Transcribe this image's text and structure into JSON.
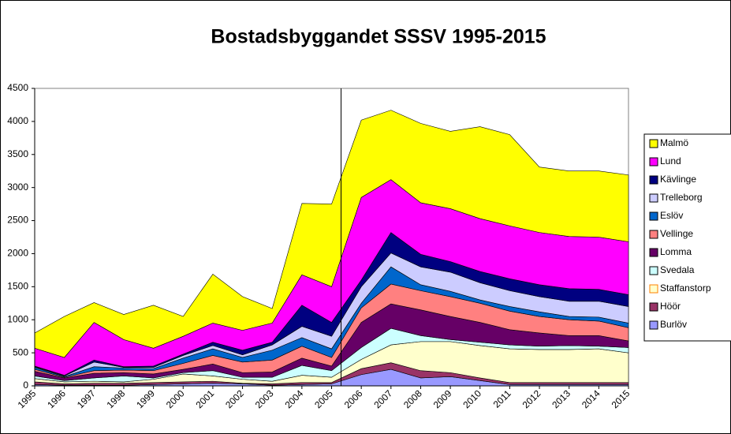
{
  "chart_data": {
    "type": "stacked_area",
    "title": "Bostadsbyggandet SSSV 1995-2015",
    "categories": [
      "1995",
      "1996",
      "1997",
      "1998",
      "1999",
      "2000",
      "2001",
      "2002",
      "2003",
      "2004",
      "2005",
      "2006",
      "2007",
      "2008",
      "2009",
      "2010",
      "2011",
      "2012",
      "2013",
      "2014",
      "2015"
    ],
    "ylim": [
      0,
      4500
    ],
    "yticks": [
      0,
      500,
      1000,
      1500,
      2000,
      2500,
      3000,
      3500,
      4000,
      4500
    ],
    "legend": "right",
    "series": [
      {
        "name": "Burlöv",
        "color": "#9999ff",
        "values": [
          20,
          10,
          10,
          10,
          20,
          30,
          40,
          30,
          10,
          20,
          30,
          170,
          250,
          120,
          140,
          80,
          20,
          20,
          20,
          20,
          20
        ]
      },
      {
        "name": "Höör",
        "color": "#993366",
        "values": [
          40,
          20,
          30,
          30,
          30,
          30,
          30,
          10,
          20,
          30,
          20,
          90,
          100,
          110,
          60,
          40,
          30,
          30,
          30,
          30,
          30
        ]
      },
      {
        "name": "Staffanstorp",
        "color": "#ffffcc",
        "values": [
          50,
          30,
          30,
          20,
          50,
          120,
          80,
          60,
          40,
          110,
          80,
          140,
          270,
          440,
          470,
          490,
          510,
          500,
          500,
          510,
          450
        ]
      },
      {
        "name": "Svedala",
        "color": "#ccffff",
        "values": [
          40,
          20,
          50,
          90,
          20,
          20,
          80,
          30,
          60,
          150,
          100,
          180,
          250,
          90,
          30,
          50,
          60,
          50,
          60,
          40,
          80
        ]
      },
      {
        "name": "Lomma",
        "color": "#660066",
        "values": [
          70,
          40,
          70,
          50,
          60,
          50,
          100,
          70,
          80,
          110,
          70,
          380,
          370,
          390,
          350,
          300,
          230,
          200,
          150,
          160,
          100
        ]
      },
      {
        "name": "Vellinge",
        "color": "#ff8080",
        "values": [
          30,
          10,
          40,
          40,
          50,
          90,
          130,
          160,
          180,
          180,
          130,
          220,
          300,
          290,
          300,
          290,
          280,
          250,
          240,
          220,
          200
        ]
      },
      {
        "name": "Eslöv",
        "color": "#0066cc",
        "values": [
          30,
          10,
          60,
          30,
          30,
          80,
          100,
          70,
          150,
          130,
          130,
          70,
          260,
          90,
          80,
          50,
          70,
          70,
          50,
          60,
          70
        ]
      },
      {
        "name": "Trelleborg",
        "color": "#ccccff",
        "values": [
          10,
          10,
          70,
          10,
          20,
          40,
          50,
          40,
          80,
          170,
          190,
          250,
          210,
          270,
          290,
          260,
          240,
          230,
          230,
          240,
          250
        ]
      },
      {
        "name": "Kävlinge",
        "color": "#000080",
        "values": [
          10,
          10,
          30,
          10,
          20,
          20,
          50,
          70,
          40,
          320,
          210,
          100,
          310,
          190,
          160,
          170,
          180,
          180,
          190,
          180,
          180
        ]
      },
      {
        "name": "Lund",
        "color": "#ff00ff",
        "values": [
          270,
          270,
          570,
          410,
          270,
          270,
          290,
          300,
          290,
          460,
          540,
          1250,
          800,
          780,
          800,
          800,
          800,
          790,
          790,
          790,
          800
        ]
      },
      {
        "name": "Malmö",
        "color": "#ffff00",
        "values": [
          230,
          620,
          300,
          380,
          650,
          300,
          740,
          510,
          220,
          1080,
          1250,
          1170,
          1050,
          1200,
          1170,
          1390,
          1380,
          990,
          990,
          1000,
          1010
        ]
      }
    ]
  }
}
